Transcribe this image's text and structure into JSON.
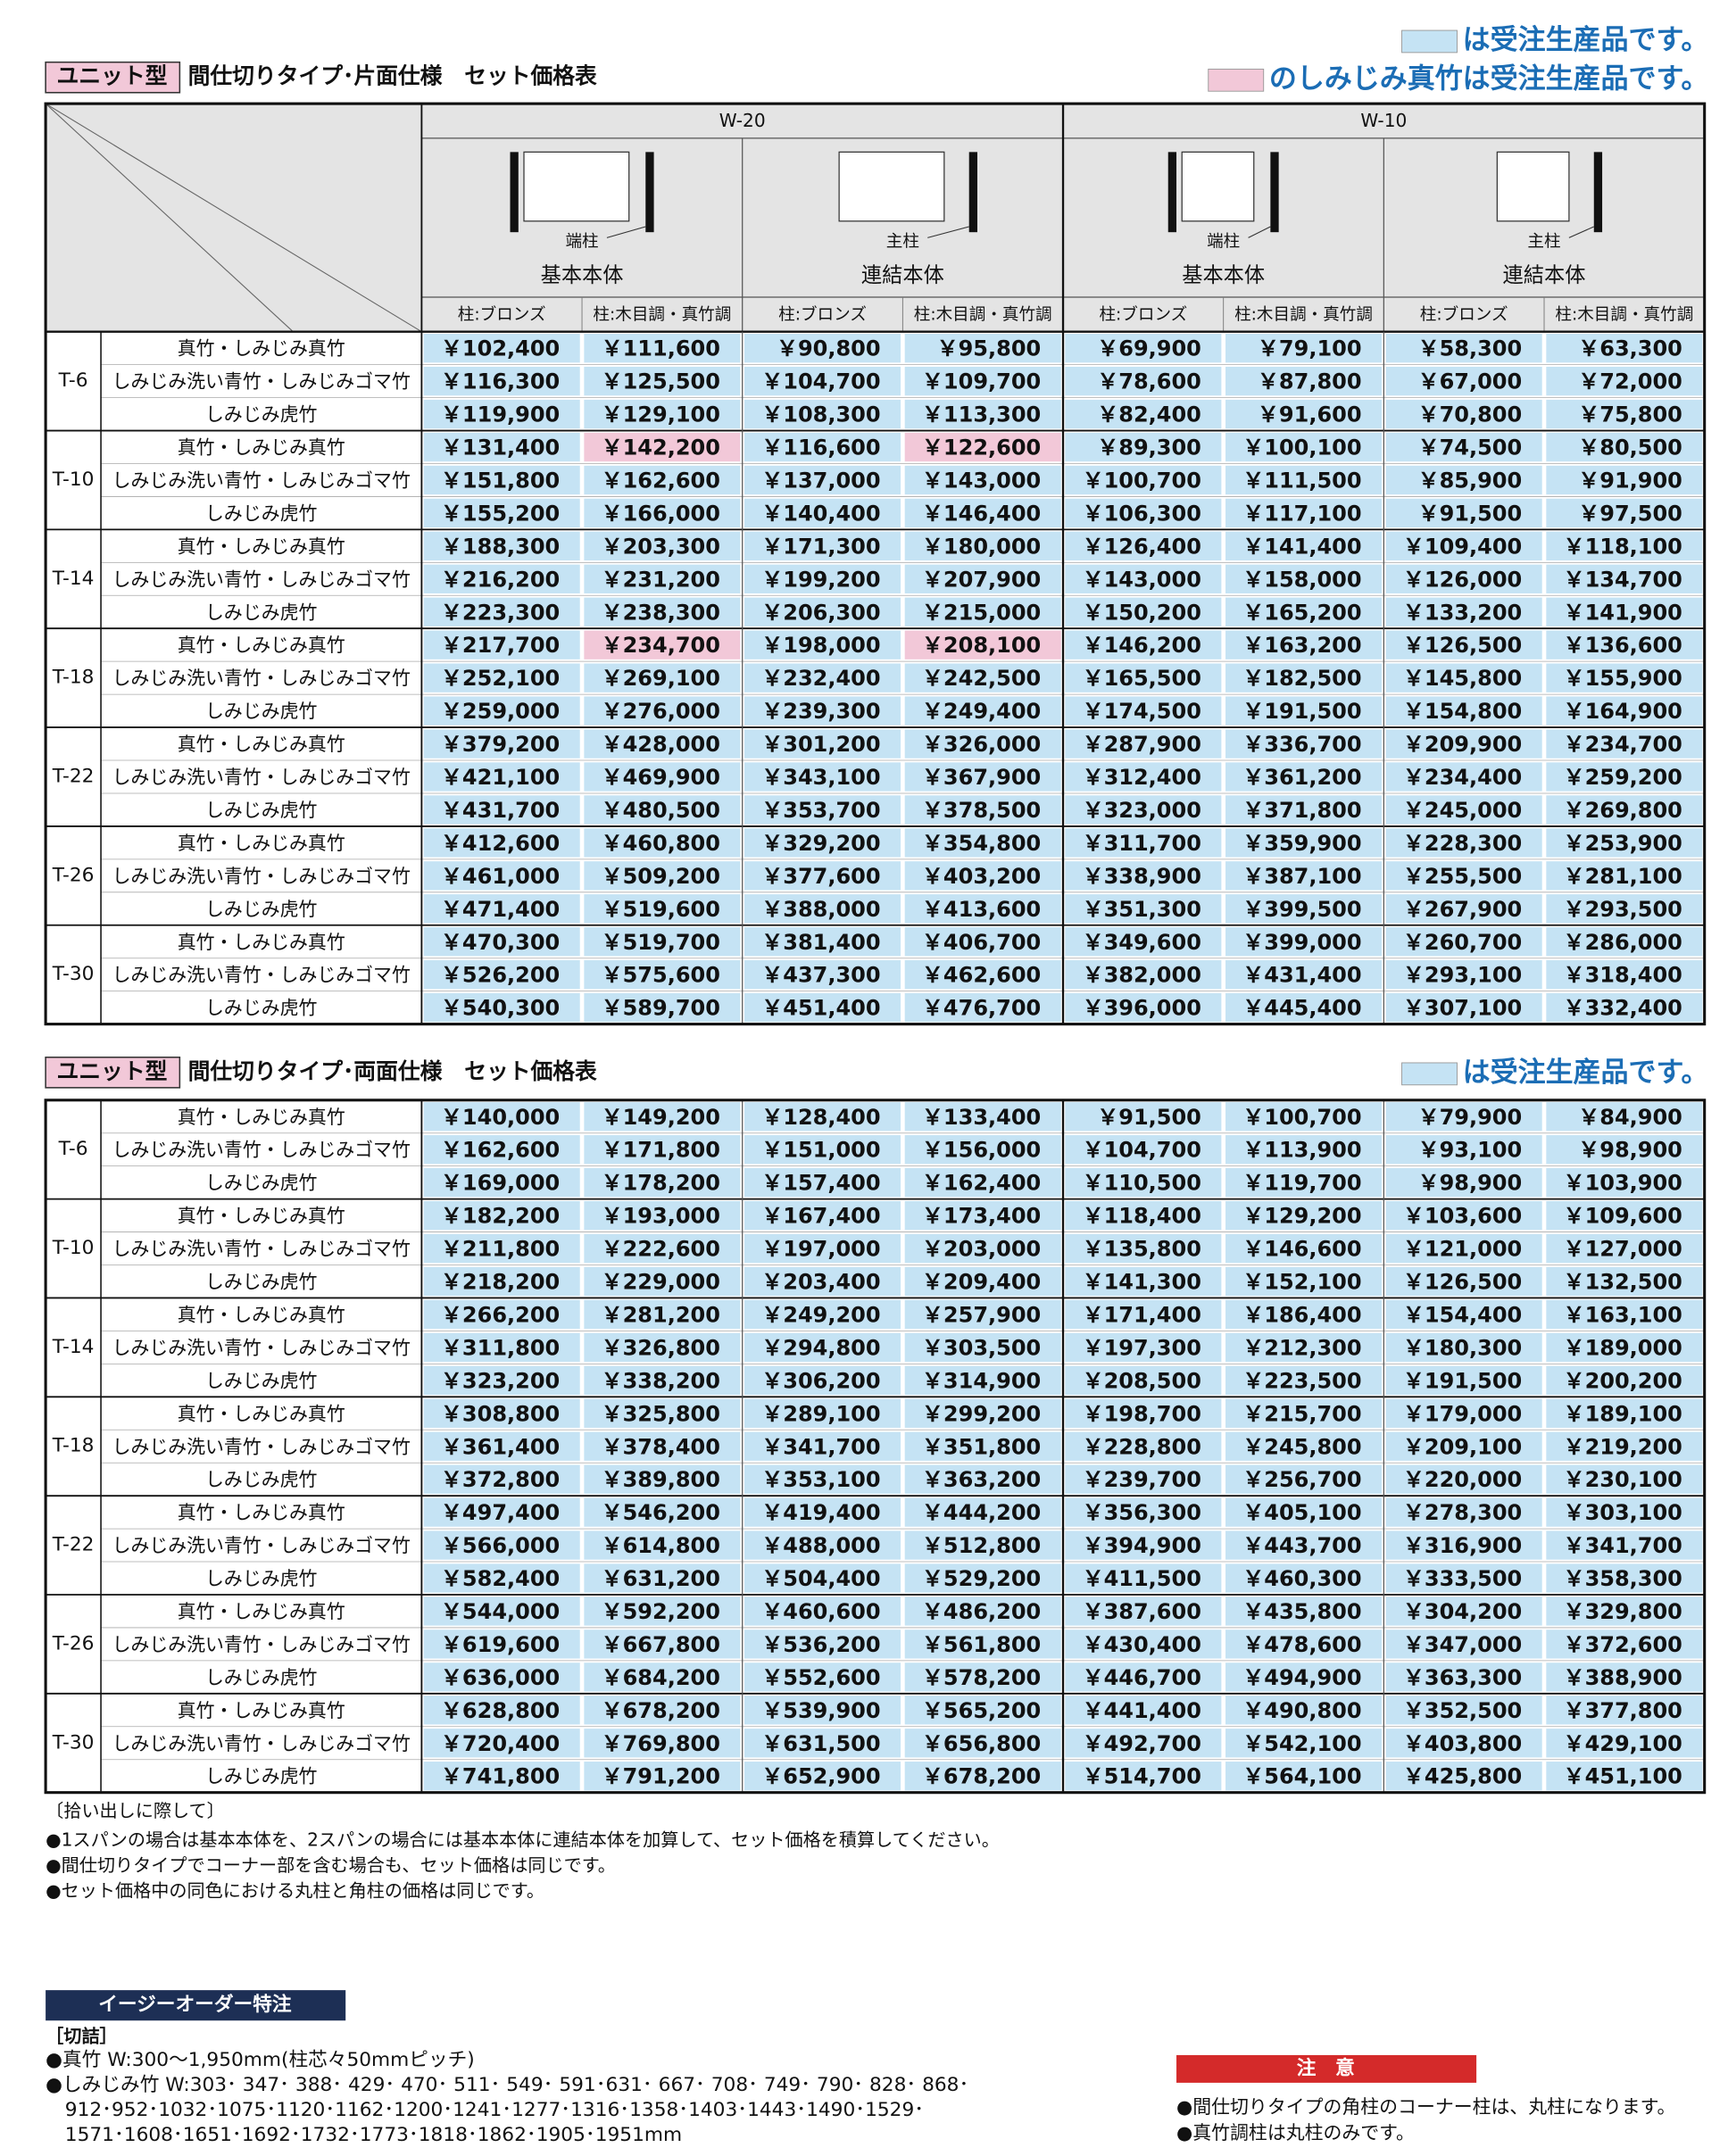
{
  "colors": {
    "order": "#c5e3f4",
    "pink": "#f2c8d8",
    "accent": "#1b6db5",
    "navy": "#1d2f55",
    "red": "#d42a2a"
  },
  "tables": [
    {
      "tag": "ユニット型",
      "title": "間仕切りタイプ･片面仕様　セット価格表",
      "legends": [
        {
          "kind": "order",
          "text": "は受注生産品です。"
        },
        {
          "kind": "pink",
          "text": "のしみじみ真竹は受注生産品です。"
        }
      ],
      "widths": [
        "W-20",
        "W-10"
      ],
      "bodies": [
        {
          "post": "端柱",
          "name": "基本本体"
        },
        {
          "post": "主柱",
          "name": "連結本体"
        },
        {
          "post": "端柱",
          "name": "基本本体"
        },
        {
          "post": "主柱",
          "name": "連結本体"
        }
      ],
      "subcols": [
        "柱:ブロンズ",
        "柱:木目調・真竹調",
        "柱:ブロンズ",
        "柱:木目調・真竹調",
        "柱:ブロンズ",
        "柱:木目調・真竹調",
        "柱:ブロンズ",
        "柱:木目調・真竹調"
      ],
      "pink_cells": [
        [
          1,
          0,
          1
        ],
        [
          1,
          0,
          3
        ],
        [
          3,
          0,
          1
        ],
        [
          3,
          0,
          3
        ]
      ],
      "groups": [
        {
          "size": "T-6",
          "rows": [
            {
              "type": "真竹・しみじみ真竹",
              "prices": [
                "￥102,400",
                "￥111,600",
                "￥90,800",
                "￥95,800",
                "￥69,900",
                "￥79,100",
                "￥58,300",
                "￥63,300"
              ]
            },
            {
              "type": "しみじみ洗い青竹・しみじみゴマ竹",
              "prices": [
                "￥116,300",
                "￥125,500",
                "￥104,700",
                "￥109,700",
                "￥78,600",
                "￥87,800",
                "￥67,000",
                "￥72,000"
              ]
            },
            {
              "type": "しみじみ虎竹",
              "prices": [
                "￥119,900",
                "￥129,100",
                "￥108,300",
                "￥113,300",
                "￥82,400",
                "￥91,600",
                "￥70,800",
                "￥75,800"
              ]
            }
          ]
        },
        {
          "size": "T-10",
          "rows": [
            {
              "type": "真竹・しみじみ真竹",
              "prices": [
                "￥131,400",
                "￥142,200",
                "￥116,600",
                "￥122,600",
                "￥89,300",
                "￥100,100",
                "￥74,500",
                "￥80,500"
              ]
            },
            {
              "type": "しみじみ洗い青竹・しみじみゴマ竹",
              "prices": [
                "￥151,800",
                "￥162,600",
                "￥137,000",
                "￥143,000",
                "￥100,700",
                "￥111,500",
                "￥85,900",
                "￥91,900"
              ]
            },
            {
              "type": "しみじみ虎竹",
              "prices": [
                "￥155,200",
                "￥166,000",
                "￥140,400",
                "￥146,400",
                "￥106,300",
                "￥117,100",
                "￥91,500",
                "￥97,500"
              ]
            }
          ]
        },
        {
          "size": "T-14",
          "rows": [
            {
              "type": "真竹・しみじみ真竹",
              "prices": [
                "￥188,300",
                "￥203,300",
                "￥171,300",
                "￥180,000",
                "￥126,400",
                "￥141,400",
                "￥109,400",
                "￥118,100"
              ]
            },
            {
              "type": "しみじみ洗い青竹・しみじみゴマ竹",
              "prices": [
                "￥216,200",
                "￥231,200",
                "￥199,200",
                "￥207,900",
                "￥143,000",
                "￥158,000",
                "￥126,000",
                "￥134,700"
              ]
            },
            {
              "type": "しみじみ虎竹",
              "prices": [
                "￥223,300",
                "￥238,300",
                "￥206,300",
                "￥215,000",
                "￥150,200",
                "￥165,200",
                "￥133,200",
                "￥141,900"
              ]
            }
          ]
        },
        {
          "size": "T-18",
          "rows": [
            {
              "type": "真竹・しみじみ真竹",
              "prices": [
                "￥217,700",
                "￥234,700",
                "￥198,000",
                "￥208,100",
                "￥146,200",
                "￥163,200",
                "￥126,500",
                "￥136,600"
              ]
            },
            {
              "type": "しみじみ洗い青竹・しみじみゴマ竹",
              "prices": [
                "￥252,100",
                "￥269,100",
                "￥232,400",
                "￥242,500",
                "￥165,500",
                "￥182,500",
                "￥145,800",
                "￥155,900"
              ]
            },
            {
              "type": "しみじみ虎竹",
              "prices": [
                "￥259,000",
                "￥276,000",
                "￥239,300",
                "￥249,400",
                "￥174,500",
                "￥191,500",
                "￥154,800",
                "￥164,900"
              ]
            }
          ]
        },
        {
          "size": "T-22",
          "rows": [
            {
              "type": "真竹・しみじみ真竹",
              "prices": [
                "￥379,200",
                "￥428,000",
                "￥301,200",
                "￥326,000",
                "￥287,900",
                "￥336,700",
                "￥209,900",
                "￥234,700"
              ]
            },
            {
              "type": "しみじみ洗い青竹・しみじみゴマ竹",
              "prices": [
                "￥421,100",
                "￥469,900",
                "￥343,100",
                "￥367,900",
                "￥312,400",
                "￥361,200",
                "￥234,400",
                "￥259,200"
              ]
            },
            {
              "type": "しみじみ虎竹",
              "prices": [
                "￥431,700",
                "￥480,500",
                "￥353,700",
                "￥378,500",
                "￥323,000",
                "￥371,800",
                "￥245,000",
                "￥269,800"
              ]
            }
          ]
        },
        {
          "size": "T-26",
          "rows": [
            {
              "type": "真竹・しみじみ真竹",
              "prices": [
                "￥412,600",
                "￥460,800",
                "￥329,200",
                "￥354,800",
                "￥311,700",
                "￥359,900",
                "￥228,300",
                "￥253,900"
              ]
            },
            {
              "type": "しみじみ洗い青竹・しみじみゴマ竹",
              "prices": [
                "￥461,000",
                "￥509,200",
                "￥377,600",
                "￥403,200",
                "￥338,900",
                "￥387,100",
                "￥255,500",
                "￥281,100"
              ]
            },
            {
              "type": "しみじみ虎竹",
              "prices": [
                "￥471,400",
                "￥519,600",
                "￥388,000",
                "￥413,600",
                "￥351,300",
                "￥399,500",
                "￥267,900",
                "￥293,500"
              ]
            }
          ]
        },
        {
          "size": "T-30",
          "rows": [
            {
              "type": "真竹・しみじみ真竹",
              "prices": [
                "￥470,300",
                "￥519,700",
                "￥381,400",
                "￥406,700",
                "￥349,600",
                "￥399,000",
                "￥260,700",
                "￥286,000"
              ]
            },
            {
              "type": "しみじみ洗い青竹・しみじみゴマ竹",
              "prices": [
                "￥526,200",
                "￥575,600",
                "￥437,300",
                "￥462,600",
                "￥382,000",
                "￥431,400",
                "￥293,100",
                "￥318,400"
              ]
            },
            {
              "type": "しみじみ虎竹",
              "prices": [
                "￥540,300",
                "￥589,700",
                "￥451,400",
                "￥476,700",
                "￥396,000",
                "￥445,400",
                "￥307,100",
                "￥332,400"
              ]
            }
          ]
        }
      ]
    },
    {
      "tag": "ユニット型",
      "title": "間仕切りタイプ･両面仕様　セット価格表",
      "legends": [
        {
          "kind": "order",
          "text": "は受注生産品です。"
        }
      ],
      "pink_cells": [],
      "groups": [
        {
          "size": "T-6",
          "rows": [
            {
              "type": "真竹・しみじみ真竹",
              "prices": [
                "￥140,000",
                "￥149,200",
                "￥128,400",
                "￥133,400",
                "￥91,500",
                "￥100,700",
                "￥79,900",
                "￥84,900"
              ]
            },
            {
              "type": "しみじみ洗い青竹・しみじみゴマ竹",
              "prices": [
                "￥162,600",
                "￥171,800",
                "￥151,000",
                "￥156,000",
                "￥104,700",
                "￥113,900",
                "￥93,100",
                "￥98,900"
              ]
            },
            {
              "type": "しみじみ虎竹",
              "prices": [
                "￥169,000",
                "￥178,200",
                "￥157,400",
                "￥162,400",
                "￥110,500",
                "￥119,700",
                "￥98,900",
                "￥103,900"
              ]
            }
          ]
        },
        {
          "size": "T-10",
          "rows": [
            {
              "type": "真竹・しみじみ真竹",
              "prices": [
                "￥182,200",
                "￥193,000",
                "￥167,400",
                "￥173,400",
                "￥118,400",
                "￥129,200",
                "￥103,600",
                "￥109,600"
              ]
            },
            {
              "type": "しみじみ洗い青竹・しみじみゴマ竹",
              "prices": [
                "￥211,800",
                "￥222,600",
                "￥197,000",
                "￥203,000",
                "￥135,800",
                "￥146,600",
                "￥121,000",
                "￥127,000"
              ]
            },
            {
              "type": "しみじみ虎竹",
              "prices": [
                "￥218,200",
                "￥229,000",
                "￥203,400",
                "￥209,400",
                "￥141,300",
                "￥152,100",
                "￥126,500",
                "￥132,500"
              ]
            }
          ]
        },
        {
          "size": "T-14",
          "rows": [
            {
              "type": "真竹・しみじみ真竹",
              "prices": [
                "￥266,200",
                "￥281,200",
                "￥249,200",
                "￥257,900",
                "￥171,400",
                "￥186,400",
                "￥154,400",
                "￥163,100"
              ]
            },
            {
              "type": "しみじみ洗い青竹・しみじみゴマ竹",
              "prices": [
                "￥311,800",
                "￥326,800",
                "￥294,800",
                "￥303,500",
                "￥197,300",
                "￥212,300",
                "￥180,300",
                "￥189,000"
              ]
            },
            {
              "type": "しみじみ虎竹",
              "prices": [
                "￥323,200",
                "￥338,200",
                "￥306,200",
                "￥314,900",
                "￥208,500",
                "￥223,500",
                "￥191,500",
                "￥200,200"
              ]
            }
          ]
        },
        {
          "size": "T-18",
          "rows": [
            {
              "type": "真竹・しみじみ真竹",
              "prices": [
                "￥308,800",
                "￥325,800",
                "￥289,100",
                "￥299,200",
                "￥198,700",
                "￥215,700",
                "￥179,000",
                "￥189,100"
              ]
            },
            {
              "type": "しみじみ洗い青竹・しみじみゴマ竹",
              "prices": [
                "￥361,400",
                "￥378,400",
                "￥341,700",
                "￥351,800",
                "￥228,800",
                "￥245,800",
                "￥209,100",
                "￥219,200"
              ]
            },
            {
              "type": "しみじみ虎竹",
              "prices": [
                "￥372,800",
                "￥389,800",
                "￥353,100",
                "￥363,200",
                "￥239,700",
                "￥256,700",
                "￥220,000",
                "￥230,100"
              ]
            }
          ]
        },
        {
          "size": "T-22",
          "rows": [
            {
              "type": "真竹・しみじみ真竹",
              "prices": [
                "￥497,400",
                "￥546,200",
                "￥419,400",
                "￥444,200",
                "￥356,300",
                "￥405,100",
                "￥278,300",
                "￥303,100"
              ]
            },
            {
              "type": "しみじみ洗い青竹・しみじみゴマ竹",
              "prices": [
                "￥566,000",
                "￥614,800",
                "￥488,000",
                "￥512,800",
                "￥394,900",
                "￥443,700",
                "￥316,900",
                "￥341,700"
              ]
            },
            {
              "type": "しみじみ虎竹",
              "prices": [
                "￥582,400",
                "￥631,200",
                "￥504,400",
                "￥529,200",
                "￥411,500",
                "￥460,300",
                "￥333,500",
                "￥358,300"
              ]
            }
          ]
        },
        {
          "size": "T-26",
          "rows": [
            {
              "type": "真竹・しみじみ真竹",
              "prices": [
                "￥544,000",
                "￥592,200",
                "￥460,600",
                "￥486,200",
                "￥387,600",
                "￥435,800",
                "￥304,200",
                "￥329,800"
              ]
            },
            {
              "type": "しみじみ洗い青竹・しみじみゴマ竹",
              "prices": [
                "￥619,600",
                "￥667,800",
                "￥536,200",
                "￥561,800",
                "￥430,400",
                "￥478,600",
                "￥347,000",
                "￥372,600"
              ]
            },
            {
              "type": "しみじみ虎竹",
              "prices": [
                "￥636,000",
                "￥684,200",
                "￥552,600",
                "￥578,200",
                "￥446,700",
                "￥494,900",
                "￥363,300",
                "￥388,900"
              ]
            }
          ]
        },
        {
          "size": "T-30",
          "rows": [
            {
              "type": "真竹・しみじみ真竹",
              "prices": [
                "￥628,800",
                "￥678,200",
                "￥539,900",
                "￥565,200",
                "￥441,400",
                "￥490,800",
                "￥352,500",
                "￥377,800"
              ]
            },
            {
              "type": "しみじみ洗い青竹・しみじみゴマ竹",
              "prices": [
                "￥720,400",
                "￥769,800",
                "￥631,500",
                "￥656,800",
                "￥492,700",
                "￥542,100",
                "￥403,800",
                "￥429,100"
              ]
            },
            {
              "type": "しみじみ虎竹",
              "prices": [
                "￥741,800",
                "￥791,200",
                "￥652,900",
                "￥678,200",
                "￥514,700",
                "￥564,100",
                "￥425,800",
                "￥451,100"
              ]
            }
          ]
        }
      ]
    }
  ],
  "notes": {
    "heading": "〔拾い出しに際して〕",
    "items": [
      "●1スパンの場合は基本本体を、2スパンの場合には基本本体に連結本体を加算して、セット価格を積算してください。",
      "●間仕切りタイプでコーナー部を含む場合も、セット価格は同じです。",
      "●セット価格中の同色における丸柱と角柱の価格は同じです。"
    ]
  },
  "easy_order": {
    "title": "イージーオーダー特注",
    "section": "［切詰］",
    "lines": [
      "●真竹 W:300～1,950mm(柱芯々50mmピッチ)",
      "●しみじみ竹 W:303･ 347･ 388･ 429･ 470･ 511･ 549･ 591･631･ 667･ 708･ 749･ 790･ 828･ 868･",
      "912･952･1032･1075･1120･1162･1200･1241･1277･1316･1358･1403･1443･1490･1529･",
      "1571･1608･1651･1692･1732･1773･1818･1862･1905･1951mm"
    ]
  },
  "caution": {
    "title": "注　意",
    "items": [
      "●間仕切りタイプの角柱のコーナー柱は、丸柱になります。",
      "●真竹調柱は丸柱のみです。"
    ]
  }
}
